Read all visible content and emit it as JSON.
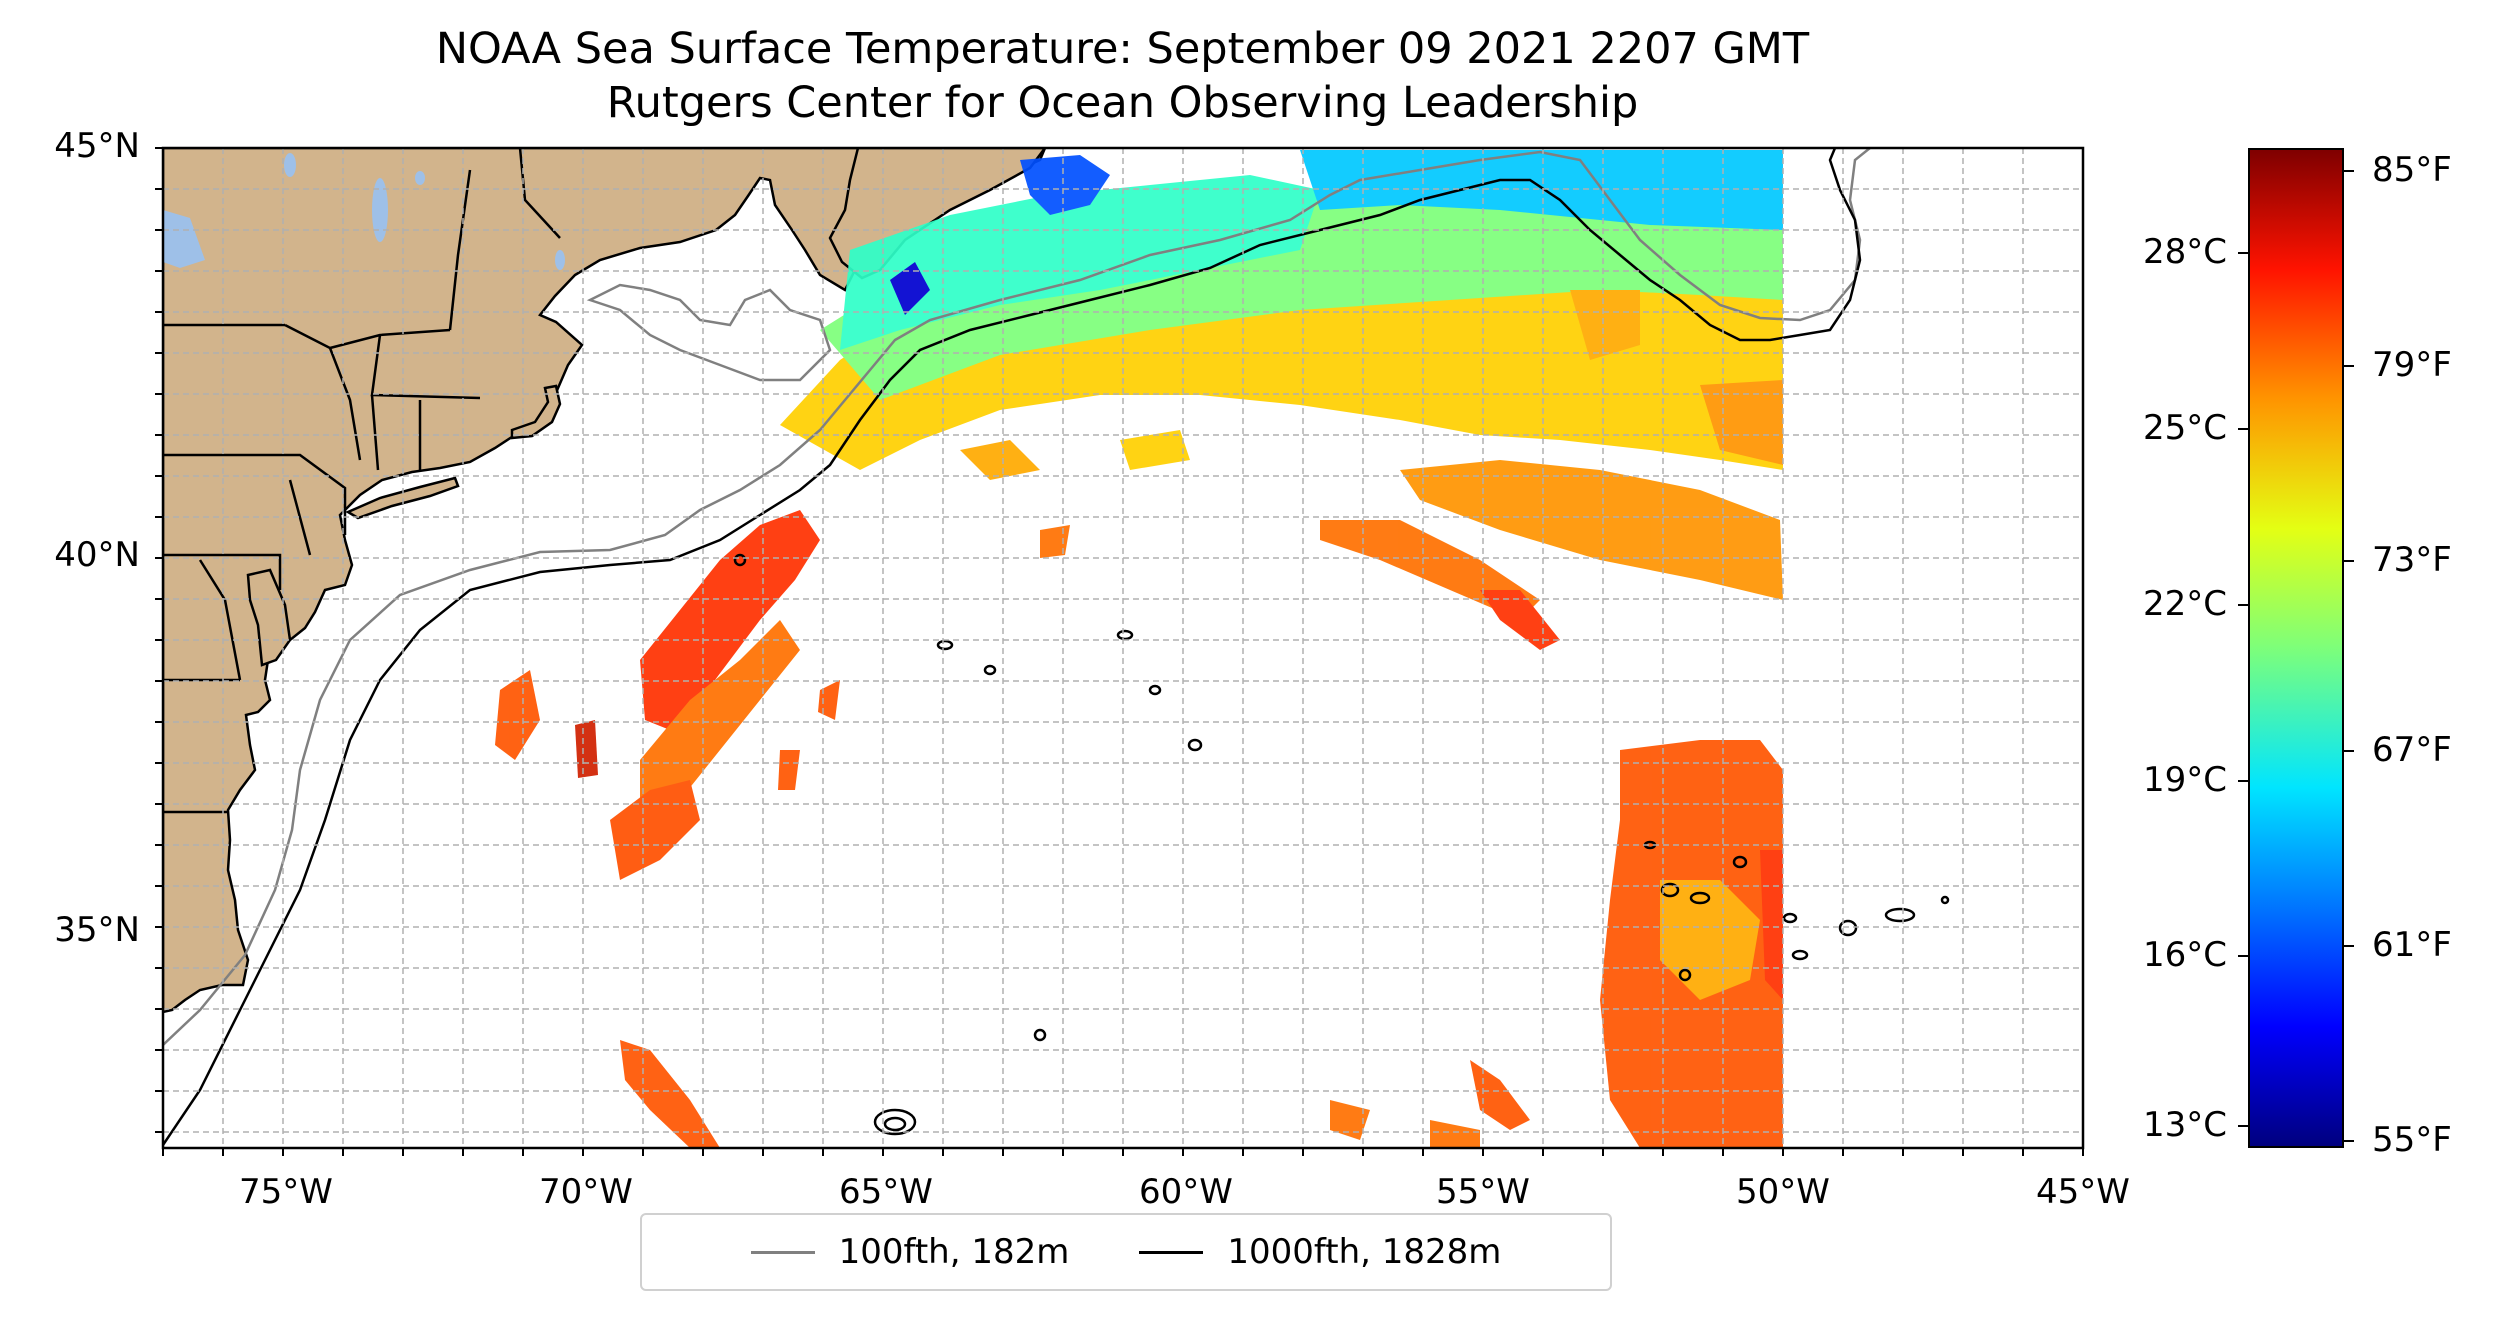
{
  "title": {
    "line1": "NOAA Sea Surface Temperature: September 09 2021 2207 GMT",
    "line2": "Rutgers Center for Ocean Observing Leadership"
  },
  "lat_ticks": [
    "45°N",
    "40°N",
    "35°N"
  ],
  "lon_ticks": [
    "75°W",
    "70°W",
    "65°W",
    "60°W",
    "55°W",
    "50°W",
    "45°W"
  ],
  "legend": [
    {
      "label": "100fth, 182m",
      "color": "#808080"
    },
    {
      "label": "1000fth, 1828m",
      "color": "#000000"
    }
  ],
  "colorbar": {
    "celsius_ticks": [
      "28°C",
      "25°C",
      "22°C",
      "19°C",
      "16°C",
      "13°C"
    ],
    "fahrenheit_ticks": [
      "85°F",
      "79°F",
      "73°F",
      "67°F",
      "61°F",
      "55°F"
    ],
    "colors": [
      "#00007f",
      "#0000ff",
      "#007fff",
      "#00e5ff",
      "#7dff7a",
      "#e4ff13",
      "#ff9400",
      "#ff1300",
      "#7f0000"
    ]
  },
  "colors": {
    "land": "#d2b48c",
    "lakes": "#9ec0e8",
    "grid": "#b0b0b0",
    "isobath_100fth": "#808080",
    "isobath_1000fth": "#000000"
  }
}
